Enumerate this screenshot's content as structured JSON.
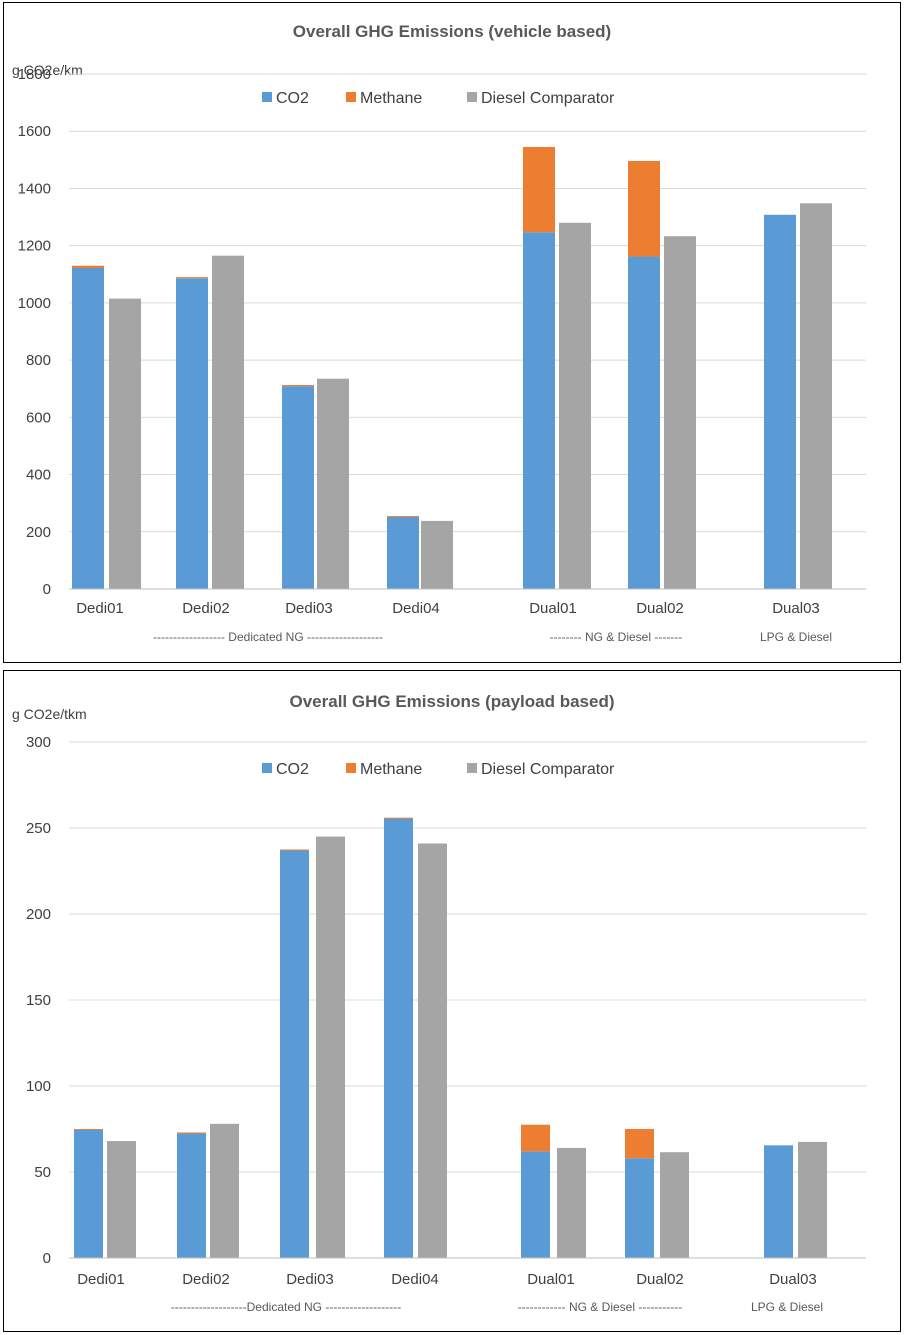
{
  "colors": {
    "co2": "#5B9BD5",
    "methane": "#ED7D31",
    "diesel": "#A5A5A5",
    "grid": "#D9D9D9",
    "axis": "#BFBFBF"
  },
  "legend": [
    "CO2",
    "Methane",
    "Diesel Comparator"
  ],
  "chart_data": [
    {
      "type": "bar",
      "title": "Overall GHG Emissions (vehicle based)",
      "ylabel": "g CO2e/km",
      "ylim": [
        0,
        1800
      ],
      "yticks": [
        0,
        200,
        400,
        600,
        800,
        1000,
        1200,
        1400,
        1600,
        1800
      ],
      "grid": true,
      "legend_position": "top",
      "categories": [
        "Dedi01",
        "Dedi02",
        "Dedi03",
        "Dedi04",
        "Dual01",
        "Dual02",
        "Dual03"
      ],
      "groups": [
        "------------------  Dedicated NG -------------------",
        "-------- NG & Diesel -------",
        "LPG & Diesel"
      ],
      "series": [
        {
          "name": "CO2",
          "stack": "A",
          "values": [
            1122,
            1086,
            709,
            252,
            1247,
            1162,
            1308
          ]
        },
        {
          "name": "Methane",
          "stack": "A",
          "values": [
            8,
            4,
            4,
            3,
            298,
            334,
            0
          ]
        },
        {
          "name": "Diesel Comparator",
          "stack": "B",
          "values": [
            1015,
            1165,
            735,
            238,
            1280,
            1233,
            1348
          ]
        }
      ]
    },
    {
      "type": "bar",
      "title": "Overall GHG Emissions (payload based)",
      "ylabel": "g CO2e/tkm",
      "ylim": [
        0,
        300
      ],
      "yticks": [
        0,
        50,
        100,
        150,
        200,
        250,
        300
      ],
      "grid": true,
      "legend_position": "top",
      "categories": [
        "Dedi01",
        "Dedi02",
        "Dedi03",
        "Dedi04",
        "Dual01",
        "Dual02",
        "Dual03"
      ],
      "groups": [
        "-------------------Dedicated  NG -------------------",
        "------------  NG & Diesel -----------",
        "LPG & Diesel"
      ],
      "series": [
        {
          "name": "CO2",
          "stack": "A",
          "values": [
            74.5,
            72.5,
            237,
            255.5,
            62,
            58,
            65.5
          ]
        },
        {
          "name": "Methane",
          "stack": "A",
          "values": [
            0.5,
            0.5,
            0.5,
            0.5,
            15.5,
            17,
            0
          ]
        },
        {
          "name": "Diesel Comparator",
          "stack": "B",
          "values": [
            68,
            78,
            245,
            241,
            64,
            61.5,
            67.5
          ]
        }
      ]
    }
  ]
}
